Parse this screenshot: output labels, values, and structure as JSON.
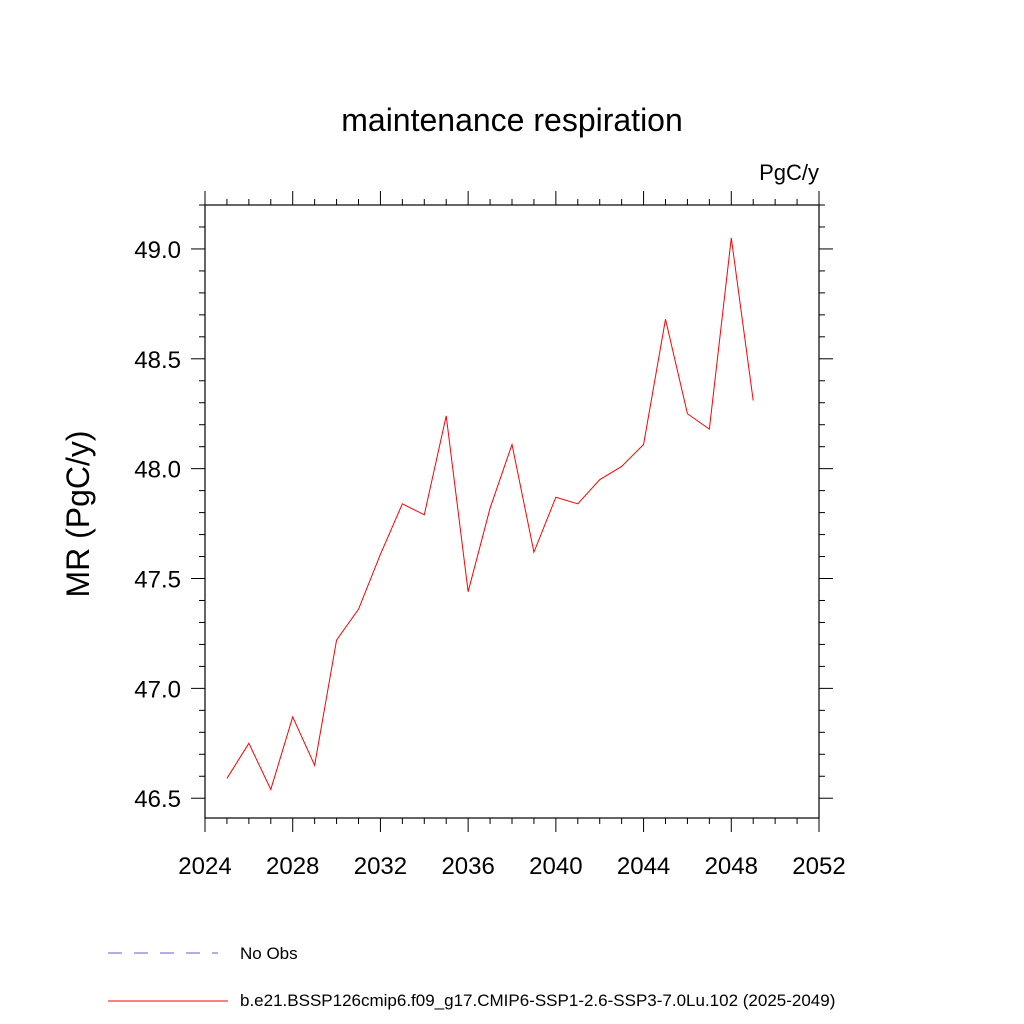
{
  "chart_data": {
    "type": "line",
    "title": "maintenance respiration",
    "units": "PgC/y",
    "ylabel": "MR  (PgC/y)",
    "xlabel": "",
    "xlim": [
      2024,
      2052
    ],
    "ylim": [
      46.41,
      49.2
    ],
    "x_ticks": [
      2024,
      2028,
      2032,
      2036,
      2040,
      2044,
      2048,
      2052
    ],
    "y_ticks": [
      "46.5",
      "47.0",
      "47.5",
      "48.0",
      "48.5",
      "49.0"
    ],
    "grid": false,
    "series": [
      {
        "name": "b.e21.BSSP126cmip6.f09_g17.CMIP6-SSP1-2.6-SSP3-7.0Lu.102 (2025-2049)",
        "color": "#ff0000",
        "x": [
          2025,
          2026,
          2027,
          2028,
          2029,
          2030,
          2031,
          2032,
          2033,
          2034,
          2035,
          2036,
          2037,
          2038,
          2039,
          2040,
          2041,
          2042,
          2043,
          2044,
          2045,
          2046,
          2047,
          2048,
          2049
        ],
        "y": [
          46.59,
          46.75,
          46.54,
          46.87,
          46.65,
          47.22,
          47.36,
          47.61,
          47.84,
          47.79,
          48.24,
          47.44,
          47.82,
          48.11,
          47.62,
          47.87,
          47.84,
          47.95,
          48.01,
          48.11,
          48.68,
          48.25,
          48.18,
          49.05,
          48.31
        ]
      }
    ],
    "legend": {
      "placement": "bottom",
      "entries": [
        {
          "label": "No Obs",
          "style": "dashed",
          "color": "#6a5acd"
        },
        {
          "label": "b.e21.BSSP126cmip6.f09_g17.CMIP6-SSP1-2.6-SSP3-7.0Lu.102 (2025-2049)",
          "style": "solid",
          "color": "#ff0000"
        }
      ]
    }
  }
}
